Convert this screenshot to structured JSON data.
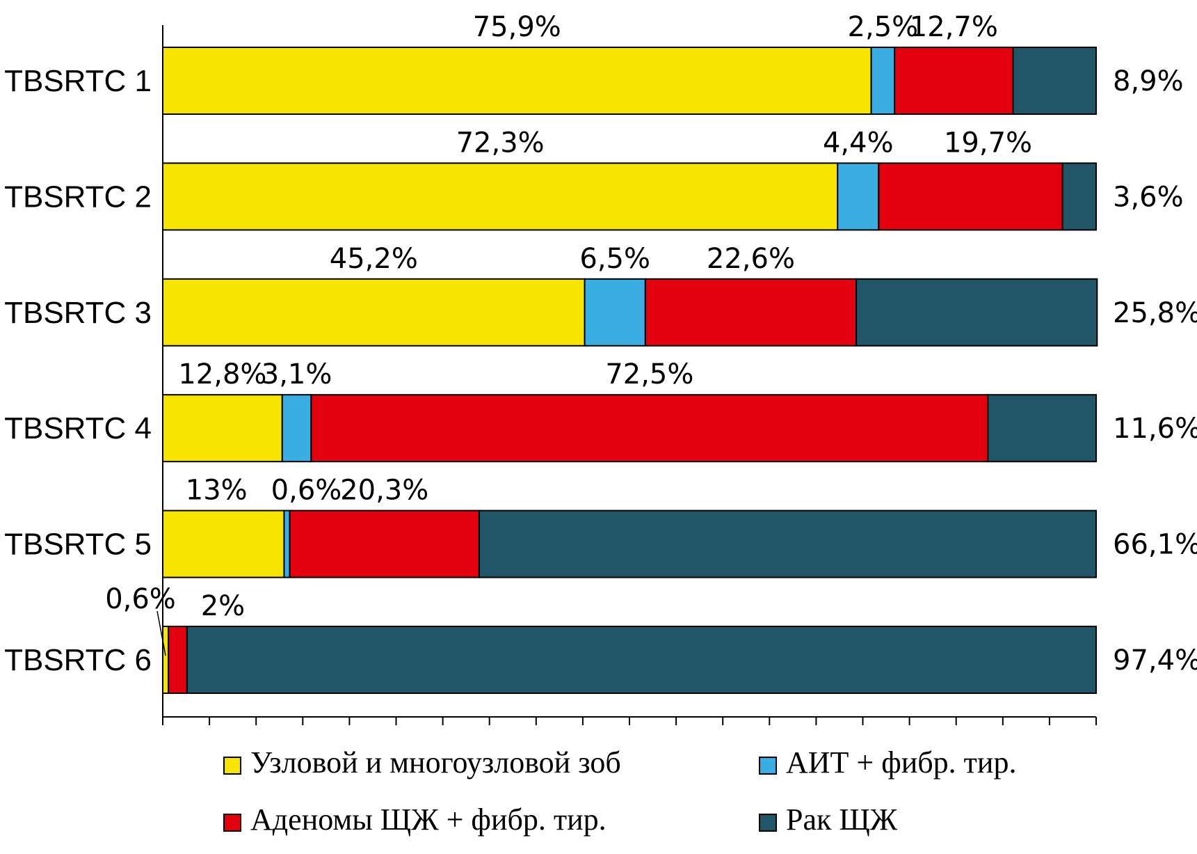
{
  "chart_data": {
    "type": "bar",
    "orientation": "horizontal",
    "stacked": true,
    "percent_stacked": true,
    "categories": [
      "TBSRTC 1",
      "TBSRTC 2",
      "TBSRTC 3",
      "TBSRTC 4",
      "TBSRTC 5",
      "TBSRTC 6"
    ],
    "series": [
      {
        "name": "Узловой и многоузловой зоб",
        "color": "#f7e400",
        "values": [
          75.9,
          72.3,
          45.2,
          12.8,
          13,
          0.6
        ],
        "labels": [
          "75,9%",
          "72,3%",
          "45,2%",
          "12,8%",
          "13%",
          "0,6%"
        ]
      },
      {
        "name": "АИТ + фибр. тир.",
        "color": "#3aaee2",
        "values": [
          2.5,
          4.4,
          6.5,
          3.1,
          0.6,
          0
        ],
        "labels": [
          "2,5%",
          "4,4%",
          "6,5%",
          "3,1%",
          "0,6%",
          ""
        ]
      },
      {
        "name": "Аденомы ЩЖ + фибр. тир.",
        "color": "#e3000f",
        "values": [
          12.7,
          19.7,
          22.6,
          72.5,
          20.3,
          2
        ],
        "labels": [
          "12,7%",
          "19,7%",
          "22,6%",
          "72,5%",
          "20,3%",
          "2%"
        ]
      },
      {
        "name": "Рак ЩЖ",
        "color": "#215669",
        "values": [
          8.9,
          3.6,
          25.8,
          11.6,
          66.1,
          97.4
        ],
        "labels": [
          "8,9%",
          "3,6%",
          "25,8%",
          "11,6%",
          "66,1%",
          "97,4%"
        ]
      }
    ],
    "xlim": [
      0,
      100
    ],
    "grid": false,
    "legend_position": "bottom",
    "title": "",
    "xlabel": "",
    "ylabel": ""
  }
}
